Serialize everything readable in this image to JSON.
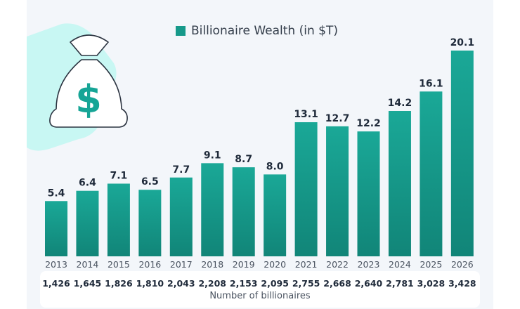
{
  "chart_data": {
    "type": "bar",
    "legend": [
      "Billionaire Wealth (in $T)"
    ],
    "legend_placement": "top",
    "categories": [
      "2013",
      "2014",
      "2015",
      "2016",
      "2017",
      "2018",
      "2019",
      "2020",
      "2021",
      "2022",
      "2023",
      "2024",
      "2025",
      "2026"
    ],
    "series": [
      {
        "name": "Billionaire Wealth (in $T)",
        "values": [
          5.4,
          6.4,
          7.1,
          6.5,
          7.7,
          9.1,
          8.7,
          8.0,
          13.1,
          12.7,
          12.2,
          14.2,
          16.1,
          20.1
        ]
      }
    ],
    "value_labels": [
      "5.4",
      "6.4",
      "7.1",
      "6.5",
      "7.7",
      "9.1",
      "8.7",
      "8.0",
      "13.1",
      "12.7",
      "12.2",
      "14.2",
      "16.1",
      "20.1"
    ],
    "billionaire_counts": [
      "1,426",
      "1,645",
      "1,826",
      "1,810",
      "2,043",
      "2,208",
      "2,153",
      "2,095",
      "2,755",
      "2,668",
      "2,640",
      "2,781",
      "3,028",
      "3,428"
    ],
    "count_label": "Number of billionaires",
    "grid": false,
    "ylim": [
      0,
      20.1
    ],
    "colors": {
      "bar_top": "#1aa897",
      "bar_bottom": "#118578",
      "icon_accent": "#16a596",
      "blob": "#c8f7f3"
    },
    "icon": "money-bag-icon"
  }
}
